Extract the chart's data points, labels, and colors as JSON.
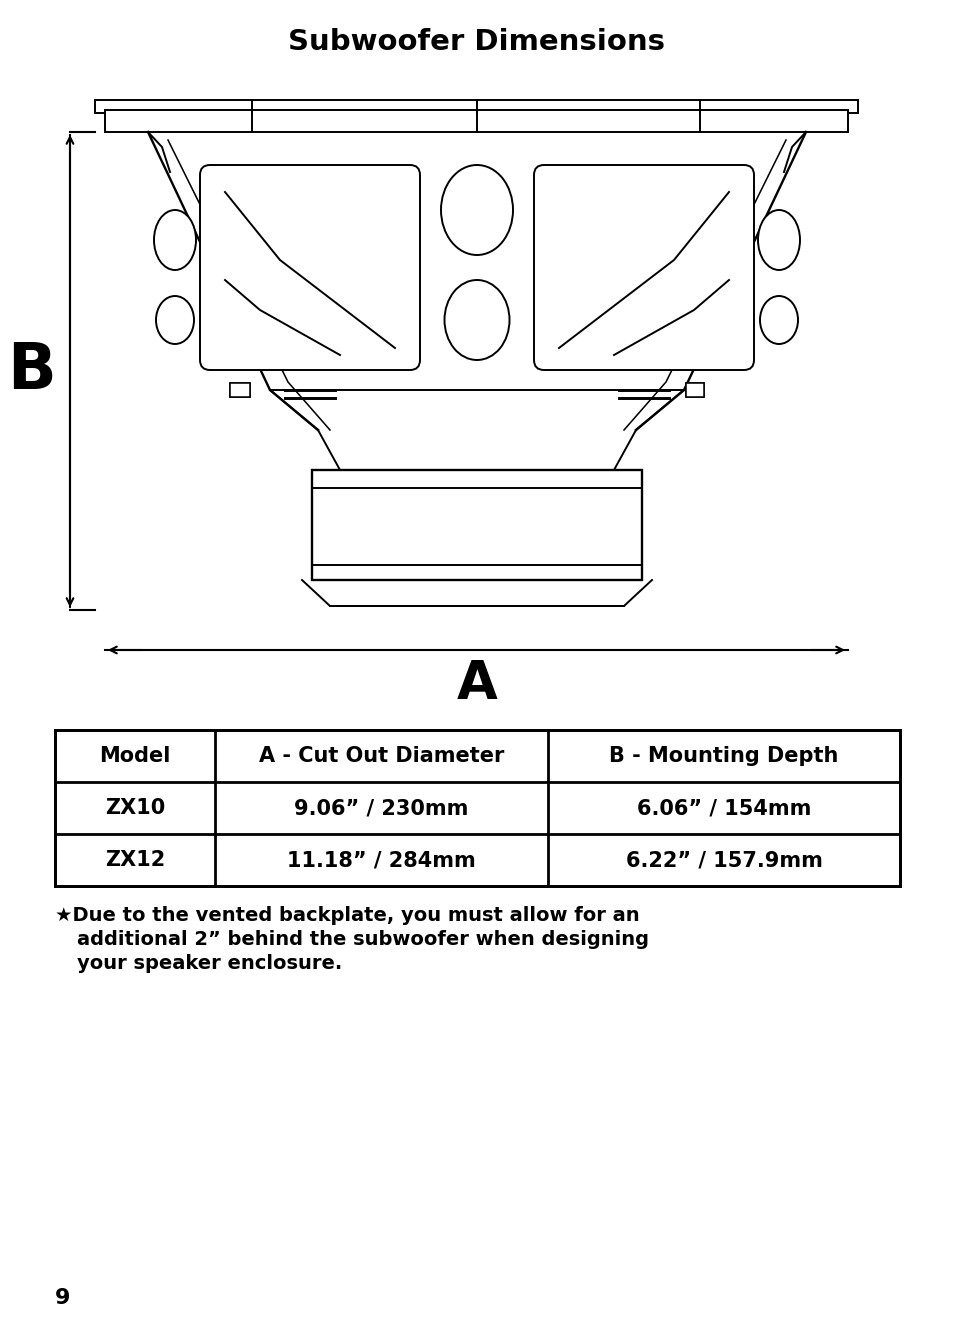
{
  "title": "Subwoofer Dimensions",
  "title_fontsize": 21,
  "bg_color": "#ffffff",
  "text_color": "#000000",
  "table_headers": [
    "Model",
    "A - Cut Out Diameter",
    "B - Mounting Depth"
  ],
  "table_rows": [
    [
      "ZX10",
      "9.06” / 230mm",
      "6.06” / 154mm"
    ],
    [
      "ZX12",
      "11.18” / 284mm",
      "6.22” / 157.9mm"
    ]
  ],
  "footnote_line1": "★Due to the vented backplate, you must allow for an",
  "footnote_line2": "additional 2” behind the subwoofer when designing",
  "footnote_line3": "your speaker enclosure.",
  "page_number": "9",
  "label_A": "A",
  "label_B": "B",
  "lw": 1.4
}
